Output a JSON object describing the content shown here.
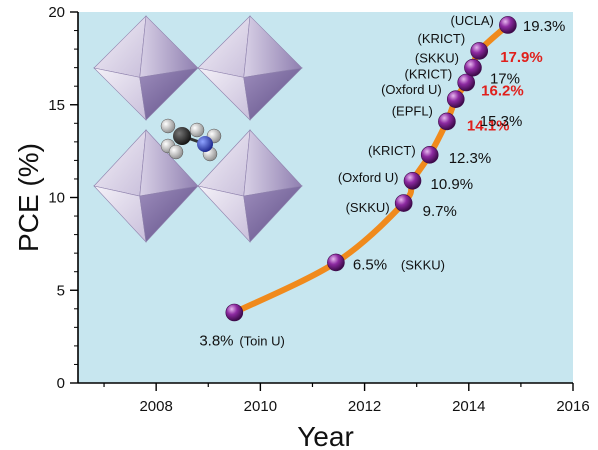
{
  "chart_data": {
    "type": "line",
    "title": "",
    "xlabel": "Year",
    "ylabel": "PCE (%)",
    "xlim": [
      2006.5,
      2016
    ],
    "ylim": [
      0,
      20
    ],
    "x_ticks": [
      2008,
      2010,
      2012,
      2014,
      2016
    ],
    "y_ticks": [
      0,
      5,
      10,
      15,
      20
    ],
    "grid": false,
    "colors": {
      "plot_background": "#c7e6ef",
      "line": "#f08a1c",
      "marker": "#7a1d8e",
      "highlight_text": "#e0201c",
      "octahedra": "#b7a9cf"
    },
    "annotation_image": "perovskite-crystal-structure",
    "points": [
      {
        "x": 2009.5,
        "y": 3.8,
        "value_label": "3.8%",
        "institution": "(Toin U)",
        "highlight": false
      },
      {
        "x": 2011.45,
        "y": 6.5,
        "value_label": "6.5%",
        "institution": "(SKKU)",
        "highlight": false
      },
      {
        "x": 2012.75,
        "y": 9.7,
        "value_label": "9.7%",
        "institution": "(SKKU)",
        "highlight": false
      },
      {
        "x": 2012.92,
        "y": 10.9,
        "value_label": "10.9%",
        "institution": "(Oxford U)",
        "highlight": false
      },
      {
        "x": 2013.25,
        "y": 12.3,
        "value_label": "12.3%",
        "institution": "(KRICT)",
        "highlight": false
      },
      {
        "x": 2013.58,
        "y": 14.1,
        "value_label": "14.1%",
        "institution": "(EPFL)",
        "highlight": true
      },
      {
        "x": 2013.75,
        "y": 15.3,
        "value_label": "15.3%",
        "institution": "(Oxford U)",
        "highlight": false
      },
      {
        "x": 2013.95,
        "y": 16.2,
        "value_label": "16.2%",
        "institution": "(KRICT)",
        "highlight": true
      },
      {
        "x": 2014.08,
        "y": 17.0,
        "value_label": "17%",
        "institution": "(SKKU)",
        "highlight": false
      },
      {
        "x": 2014.2,
        "y": 17.9,
        "value_label": "17.9%",
        "institution": "(KRICT)",
        "highlight": true
      },
      {
        "x": 2014.75,
        "y": 19.3,
        "value_label": "19.3%",
        "institution": "(UCLA)",
        "highlight": false
      }
    ]
  }
}
